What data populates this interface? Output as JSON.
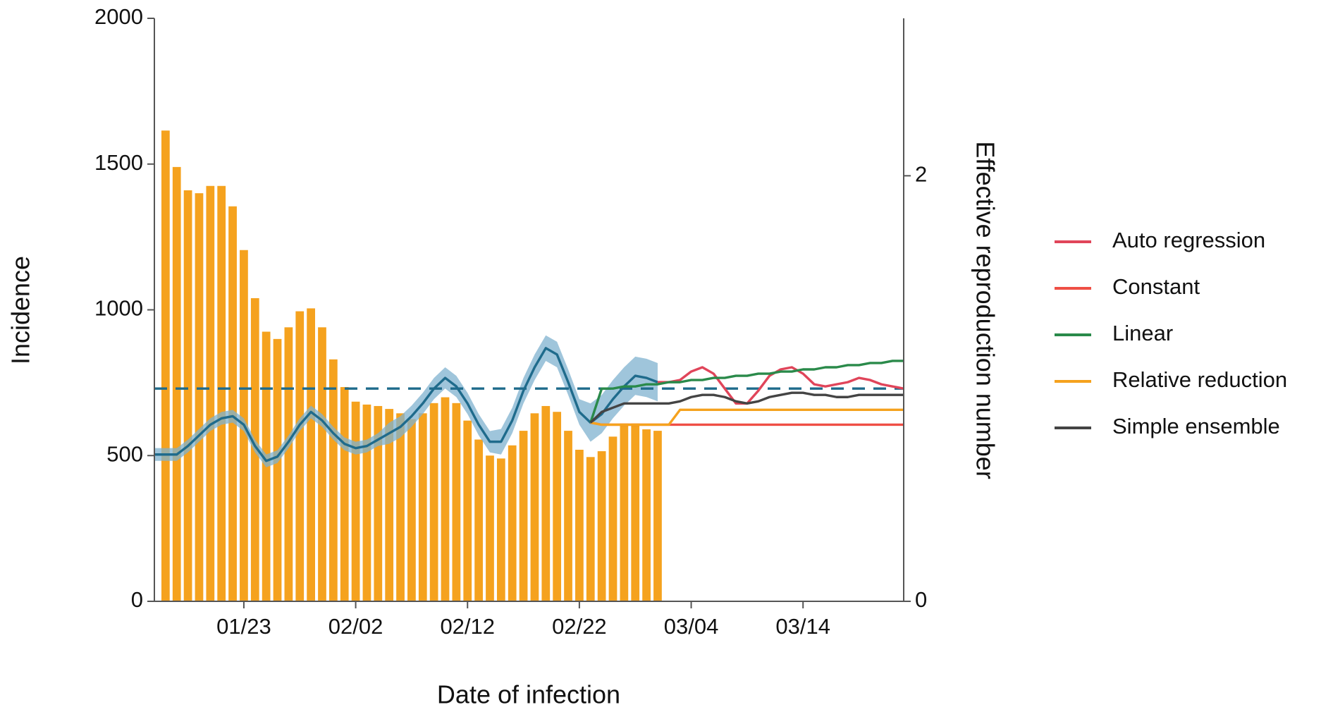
{
  "chart_data": {
    "type": "bar_line",
    "xlabel": "Date of infection",
    "ylabel": "Incidence",
    "y2label": "Effective reproduction number",
    "categories": [
      null,
      null,
      null,
      null,
      null,
      null,
      null,
      null,
      "01/23",
      null,
      null,
      null,
      null,
      null,
      null,
      null,
      null,
      null,
      "02/02",
      null,
      null,
      null,
      null,
      null,
      null,
      null,
      null,
      null,
      "02/12",
      null,
      null,
      null,
      null,
      null,
      null,
      null,
      null,
      null,
      "02/22",
      null,
      null,
      null,
      null,
      null,
      null,
      null,
      null,
      null,
      "03/04",
      null,
      null,
      null,
      null,
      null,
      null,
      null,
      null,
      null,
      "03/14",
      null,
      null,
      null,
      null,
      null,
      null,
      null,
      null,
      null
    ],
    "ylim": [
      0,
      2000
    ],
    "yticks": [
      0,
      500,
      1000,
      1500,
      2000
    ],
    "y2lim": [
      0,
      2.74
    ],
    "y2ticks": [
      0,
      2
    ],
    "bars": {
      "color": "#f5a21e",
      "values": [
        null,
        1615,
        1490,
        1410,
        1400,
        1425,
        1425,
        1355,
        1205,
        1040,
        925,
        900,
        940,
        995,
        1005,
        940,
        830,
        735,
        685,
        675,
        670,
        660,
        645,
        625,
        645,
        680,
        700,
        680,
        620,
        555,
        500,
        490,
        535,
        585,
        645,
        670,
        650,
        585,
        520,
        495,
        515,
        565,
        610,
        610,
        590,
        585,
        null,
        null,
        null,
        null,
        null,
        null,
        null,
        null,
        null,
        null,
        null,
        null,
        null,
        null,
        null,
        null,
        null,
        null,
        null,
        null,
        null,
        null
      ]
    },
    "reference_line": {
      "value": 1,
      "axis": "y2",
      "color": "#1f6b8c",
      "dashed": true
    },
    "series": [
      {
        "axis": "y2",
        "color": "#1f6b8c",
        "band_color": "#7fb2cf",
        "values": [
          0.69,
          0.69,
          0.69,
          0.73,
          0.78,
          0.83,
          0.86,
          0.87,
          0.83,
          0.73,
          0.66,
          0.68,
          0.75,
          0.83,
          0.89,
          0.85,
          0.79,
          0.74,
          0.72,
          0.73,
          0.76,
          0.79,
          0.82,
          0.87,
          0.93,
          1.0,
          1.05,
          1.01,
          0.93,
          0.83,
          0.75,
          0.75,
          0.85,
          0.99,
          1.1,
          1.19,
          1.16,
          1.03,
          0.89,
          0.84,
          0.88,
          0.95,
          1.01,
          1.06,
          1.05,
          1.03,
          null,
          null,
          null,
          null,
          null,
          null,
          null,
          null,
          null,
          null,
          null,
          null,
          null,
          null,
          null,
          null,
          null,
          null,
          null,
          null,
          null,
          null
        ],
        "lower": [
          0.66,
          0.66,
          0.66,
          0.7,
          0.75,
          0.8,
          0.83,
          0.84,
          0.8,
          0.7,
          0.63,
          0.65,
          0.72,
          0.8,
          0.86,
          0.82,
          0.76,
          0.71,
          0.69,
          0.7,
          0.73,
          0.74,
          0.77,
          0.82,
          0.88,
          0.95,
          1.0,
          0.96,
          0.88,
          0.78,
          0.7,
          0.69,
          0.79,
          0.93,
          1.04,
          1.13,
          1.1,
          0.97,
          0.83,
          0.75,
          0.79,
          0.86,
          0.92,
          0.97,
          0.96,
          0.94,
          null,
          null,
          null,
          null,
          null,
          null,
          null,
          null,
          null,
          null,
          null,
          null,
          null,
          null,
          null,
          null,
          null,
          null,
          null,
          null,
          null,
          null
        ],
        "upper": [
          0.72,
          0.72,
          0.72,
          0.76,
          0.81,
          0.86,
          0.89,
          0.9,
          0.86,
          0.76,
          0.69,
          0.71,
          0.78,
          0.86,
          0.92,
          0.88,
          0.82,
          0.77,
          0.75,
          0.76,
          0.79,
          0.84,
          0.87,
          0.92,
          0.98,
          1.05,
          1.1,
          1.06,
          0.98,
          0.88,
          0.8,
          0.81,
          0.91,
          1.05,
          1.16,
          1.25,
          1.22,
          1.09,
          0.95,
          0.93,
          0.97,
          1.04,
          1.1,
          1.15,
          1.14,
          1.12,
          null,
          null,
          null,
          null,
          null,
          null,
          null,
          null,
          null,
          null,
          null,
          null,
          null,
          null,
          null,
          null,
          null,
          null,
          null,
          null,
          null,
          null
        ]
      },
      {
        "name": "Auto regression",
        "axis": "y2",
        "color": "#e0455a",
        "values": [
          null,
          null,
          null,
          null,
          null,
          null,
          null,
          null,
          null,
          null,
          null,
          null,
          null,
          null,
          null,
          null,
          null,
          null,
          null,
          null,
          null,
          null,
          null,
          null,
          null,
          null,
          null,
          null,
          null,
          null,
          null,
          null,
          null,
          null,
          null,
          null,
          null,
          null,
          null,
          null,
          null,
          null,
          null,
          null,
          null,
          1.03,
          1.03,
          1.04,
          1.08,
          1.1,
          1.07,
          1.0,
          0.93,
          0.93,
          0.99,
          1.06,
          1.09,
          1.1,
          1.07,
          1.02,
          1.01,
          1.02,
          1.03,
          1.05,
          1.04,
          1.02,
          1.01,
          1.0
        ]
      },
      {
        "name": "Constant",
        "axis": "y2",
        "color": "#ef4f45",
        "values": [
          null,
          null,
          null,
          null,
          null,
          null,
          null,
          null,
          null,
          null,
          null,
          null,
          null,
          null,
          null,
          null,
          null,
          null,
          null,
          null,
          null,
          null,
          null,
          null,
          null,
          null,
          null,
          null,
          null,
          null,
          null,
          null,
          null,
          null,
          null,
          null,
          null,
          null,
          null,
          0.84,
          0.83,
          0.83,
          0.83,
          0.83,
          0.83,
          0.83,
          0.83,
          0.83,
          0.83,
          0.83,
          0.83,
          0.83,
          0.83,
          0.83,
          0.83,
          0.83,
          0.83,
          0.83,
          0.83,
          0.83,
          0.83,
          0.83,
          0.83,
          0.83,
          0.83,
          0.83,
          0.83,
          0.83
        ]
      },
      {
        "name": "Linear",
        "axis": "y2",
        "color": "#2a8a4a",
        "values": [
          null,
          null,
          null,
          null,
          null,
          null,
          null,
          null,
          null,
          null,
          null,
          null,
          null,
          null,
          null,
          null,
          null,
          null,
          null,
          null,
          null,
          null,
          null,
          null,
          null,
          null,
          null,
          null,
          null,
          null,
          null,
          null,
          null,
          null,
          null,
          null,
          null,
          null,
          null,
          0.84,
          1.0,
          1.0,
          1.01,
          1.01,
          1.02,
          1.02,
          1.03,
          1.03,
          1.04,
          1.04,
          1.05,
          1.05,
          1.06,
          1.06,
          1.07,
          1.07,
          1.08,
          1.08,
          1.09,
          1.09,
          1.1,
          1.1,
          1.11,
          1.11,
          1.12,
          1.12,
          1.13,
          1.13
        ]
      },
      {
        "name": "Relative reduction",
        "axis": "y2",
        "color": "#f5a21e",
        "values": [
          null,
          null,
          null,
          null,
          null,
          null,
          null,
          null,
          null,
          null,
          null,
          null,
          null,
          null,
          null,
          null,
          null,
          null,
          null,
          null,
          null,
          null,
          null,
          null,
          null,
          null,
          null,
          null,
          null,
          null,
          null,
          null,
          null,
          null,
          null,
          null,
          null,
          null,
          null,
          0.84,
          0.83,
          0.83,
          0.83,
          0.83,
          0.83,
          0.83,
          0.83,
          0.9,
          0.9,
          0.9,
          0.9,
          0.9,
          0.9,
          0.9,
          0.9,
          0.9,
          0.9,
          0.9,
          0.9,
          0.9,
          0.9,
          0.9,
          0.9,
          0.9,
          0.9,
          0.9,
          0.9,
          0.9
        ]
      },
      {
        "name": "Simple ensemble",
        "axis": "y2",
        "color": "#444444",
        "values": [
          null,
          null,
          null,
          null,
          null,
          null,
          null,
          null,
          null,
          null,
          null,
          null,
          null,
          null,
          null,
          null,
          null,
          null,
          null,
          null,
          null,
          null,
          null,
          null,
          null,
          null,
          null,
          null,
          null,
          null,
          null,
          null,
          null,
          null,
          null,
          null,
          null,
          null,
          null,
          0.84,
          0.89,
          0.91,
          0.93,
          0.93,
          0.93,
          0.93,
          0.93,
          0.94,
          0.96,
          0.97,
          0.97,
          0.96,
          0.94,
          0.93,
          0.94,
          0.96,
          0.97,
          0.98,
          0.98,
          0.97,
          0.97,
          0.96,
          0.96,
          0.97,
          0.97,
          0.97,
          0.97,
          0.97
        ]
      }
    ]
  }
}
